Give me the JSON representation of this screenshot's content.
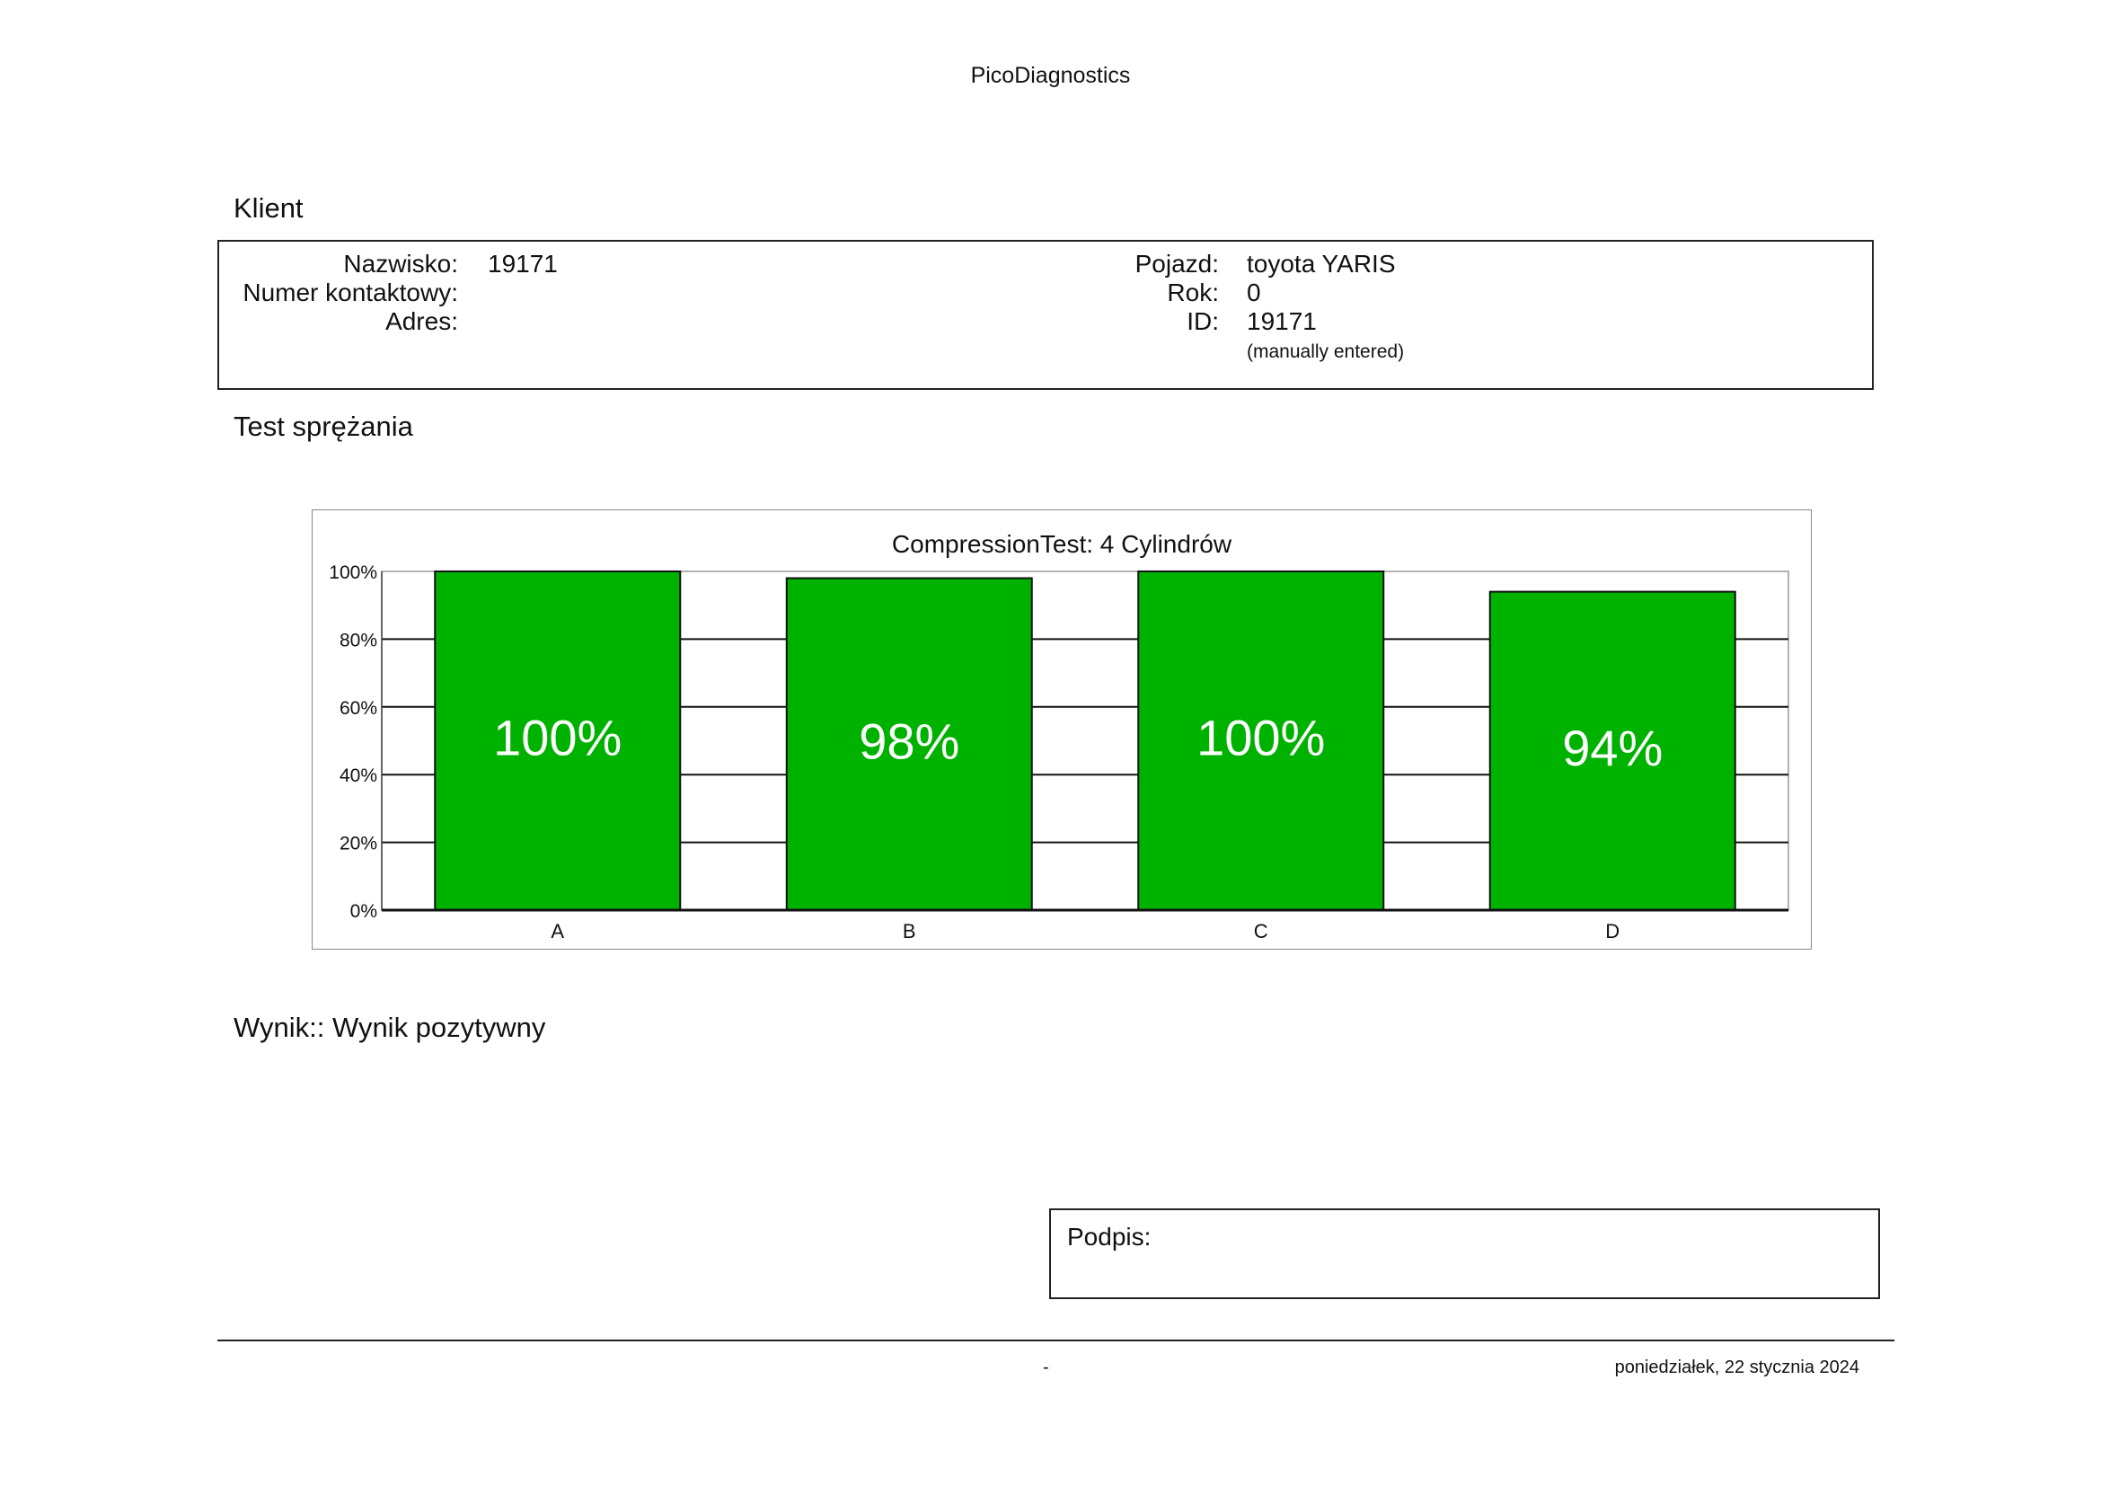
{
  "header": {
    "app_title": "PicoDiagnostics"
  },
  "client_section": {
    "title": "Klient",
    "left": [
      {
        "label": "Nazwisko:",
        "value": "19171"
      },
      {
        "label": "Numer kontaktowy:",
        "value": ""
      },
      {
        "label": "Adres:",
        "value": ""
      }
    ],
    "right": [
      {
        "label": "Pojazd:",
        "value": "toyota YARIS"
      },
      {
        "label": "Rok:",
        "value": "0"
      },
      {
        "label": "ID:",
        "value": "19171"
      }
    ],
    "id_note": "(manually entered)"
  },
  "test_section": {
    "title": "Test sprężania"
  },
  "chart_data": {
    "type": "bar",
    "title": "CompressionTest: 4 Cylindrów",
    "categories": [
      "A",
      "B",
      "C",
      "D"
    ],
    "values": [
      100,
      98,
      100,
      94
    ],
    "data_labels": [
      "100%",
      "98%",
      "100%",
      "94%"
    ],
    "y_ticks": [
      "0%",
      "20%",
      "40%",
      "60%",
      "80%",
      "100%"
    ],
    "ylim": [
      0,
      100
    ],
    "grid": true,
    "bar_color": "#00b200"
  },
  "result": {
    "text": "Wynik:: Wynik pozytywny"
  },
  "signature": {
    "label": "Podpis:"
  },
  "footer": {
    "center": "-",
    "date": "poniedziałek, 22 stycznia 2024"
  }
}
